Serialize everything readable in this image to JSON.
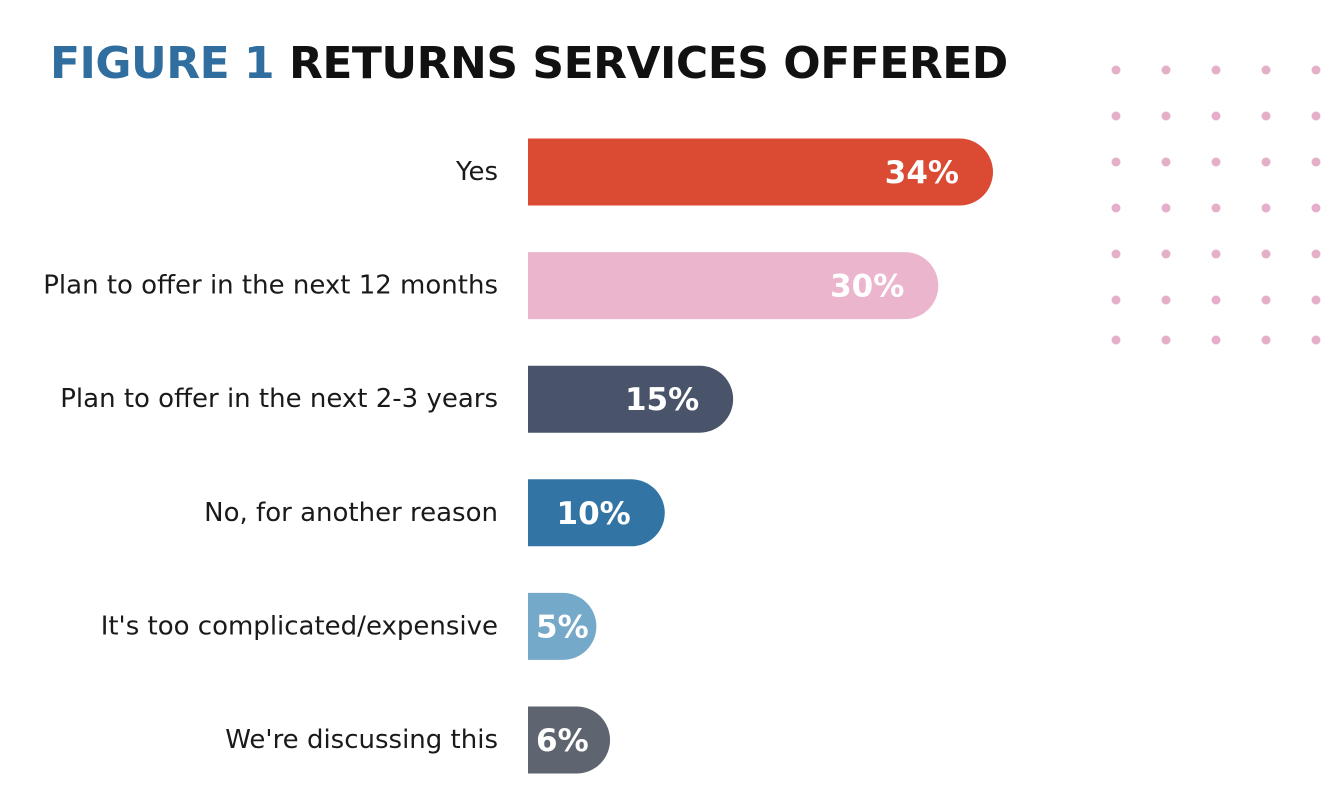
{
  "figure": {
    "number": "FIGURE 1",
    "title": "RETURNS SERVICES OFFERED"
  },
  "chart_data": {
    "type": "bar",
    "orientation": "horizontal",
    "categories": [
      "Yes",
      "Plan to offer in the next 12 months",
      "Plan to offer in the next 2-3 years",
      "No, for another reason",
      "It's too complicated/expensive",
      "We're discussing this"
    ],
    "values": [
      34,
      30,
      15,
      10,
      5,
      6
    ],
    "value_labels": [
      "34%",
      "30%",
      "15%",
      "10%",
      "5%",
      "6%"
    ],
    "unit": "%",
    "xlim": [
      0,
      34
    ],
    "grid": false,
    "legend": "none",
    "colors": [
      "#DB4A33",
      "#ECB5CE",
      "#49546B",
      "#3275A5",
      "#75A9C9",
      "#5E6570"
    ]
  },
  "decoration": {
    "dot_color": "#E6AFC9"
  }
}
